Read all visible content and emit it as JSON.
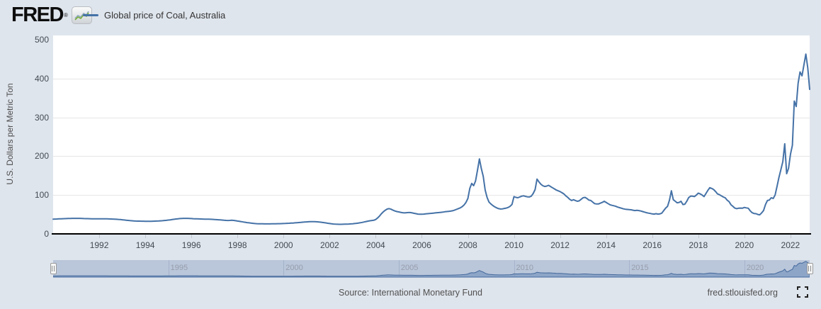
{
  "header": {
    "logo_text": "FRED",
    "registered_mark": "®",
    "legend": {
      "label": "Global price of Coal, Australia",
      "swatch_color": "#4572a7"
    }
  },
  "chart_data": {
    "type": "line",
    "title": "Global price of Coal, Australia",
    "ylabel": "U.S. Dollars per Metric Ton",
    "ylim": [
      0,
      500
    ],
    "y_ticks": [
      0,
      100,
      200,
      300,
      400,
      500
    ],
    "x_tick_years": [
      1992,
      1994,
      1996,
      1998,
      2000,
      2002,
      2004,
      2006,
      2008,
      2010,
      2012,
      2014,
      2016,
      2018,
      2020,
      2022
    ],
    "x_start_year": 1990,
    "frequency": "monthly",
    "grid": "horizontal",
    "legend_position": "top-left",
    "line_color": "#4572a7",
    "series": [
      {
        "name": "Global price of Coal, Australia",
        "units": "U.S. Dollars per Metric Ton",
        "values": [
          38.0,
          38.2,
          38.4,
          38.6,
          38.8,
          39.0,
          39.2,
          39.4,
          39.6,
          39.8,
          39.9,
          40.0,
          40.0,
          40.0,
          39.9,
          39.7,
          39.5,
          39.3,
          39.2,
          39.0,
          38.9,
          38.8,
          38.7,
          38.6,
          38.6,
          38.7,
          38.8,
          38.8,
          38.7,
          38.5,
          38.3,
          38.1,
          37.9,
          37.6,
          37.3,
          37.0,
          36.4,
          35.8,
          35.2,
          34.6,
          34.1,
          33.7,
          33.4,
          33.1,
          32.9,
          32.8,
          32.7,
          32.6,
          32.5,
          32.4,
          32.4,
          32.5,
          32.6,
          32.8,
          33.0,
          33.3,
          33.6,
          34.0,
          34.4,
          34.9,
          35.5,
          36.2,
          36.9,
          37.6,
          38.3,
          38.9,
          39.4,
          39.7,
          39.9,
          40.0,
          39.9,
          39.7,
          39.4,
          39.1,
          38.9,
          38.7,
          38.5,
          38.3,
          38.1,
          37.9,
          37.8,
          37.7,
          37.6,
          37.4,
          37.1,
          36.7,
          36.3,
          35.9,
          35.5,
          35.1,
          34.7,
          34.4,
          34.6,
          35.0,
          34.6,
          33.9,
          33.1,
          32.3,
          31.5,
          30.7,
          29.9,
          29.1,
          28.4,
          27.7,
          27.1,
          26.6,
          26.3,
          26.1,
          26.0,
          25.9,
          25.8,
          25.7,
          25.7,
          25.8,
          25.9,
          26.0,
          26.1,
          26.2,
          26.3,
          26.5,
          26.7,
          26.9,
          27.1,
          27.4,
          27.7,
          28.0,
          28.4,
          28.8,
          29.2,
          29.6,
          30.1,
          30.5,
          30.9,
          31.2,
          31.5,
          31.6,
          31.5,
          31.2,
          30.8,
          30.3,
          29.7,
          29.0,
          28.2,
          27.4,
          26.6,
          25.9,
          25.4,
          25.0,
          24.8,
          24.7,
          24.7,
          24.8,
          25.0,
          25.2,
          25.4,
          25.7,
          26.1,
          26.6,
          27.2,
          27.9,
          28.7,
          29.6,
          30.6,
          31.7,
          32.9,
          33.8,
          34.4,
          35.0,
          37.0,
          41.0,
          46.0,
          52.0,
          57.0,
          61.0,
          64.0,
          65.0,
          63.5,
          61.0,
          59.0,
          57.5,
          56.5,
          55.5,
          54.5,
          54.0,
          54.5,
          55.0,
          55.0,
          54.0,
          53.0,
          52.0,
          51.0,
          50.5,
          50.5,
          51.0,
          51.5,
          52.0,
          52.5,
          53.0,
          53.5,
          54.0,
          54.5,
          55.0,
          55.5,
          56.0,
          57.0,
          57.5,
          58.0,
          58.5,
          59.5,
          61.0,
          63.0,
          65.0,
          67.0,
          70.0,
          74.5,
          81.0,
          91.0,
          117.0,
          130.0,
          124.0,
          136.0,
          164.0,
          193.0,
          168.0,
          148.0,
          113.0,
          94.0,
          82.0,
          77.0,
          73.0,
          69.5,
          67.0,
          65.0,
          64.0,
          64.5,
          65.5,
          66.5,
          68.0,
          71.0,
          76.0,
          96.0,
          94.0,
          93.0,
          95.0,
          97.0,
          98.0,
          96.5,
          95.5,
          95.0,
          97.0,
          104.0,
          114.0,
          141.0,
          134.0,
          128.0,
          124.0,
          122.0,
          123.0,
          125.0,
          122.0,
          119.0,
          116.0,
          113.0,
          111.0,
          109.0,
          106.0,
          103.0,
          98.0,
          94.0,
          89.0,
          86.0,
          88.0,
          86.0,
          84.0,
          85.0,
          89.0,
          93.0,
          94.0,
          91.0,
          87.0,
          86.0,
          82.0,
          78.0,
          77.0,
          77.0,
          79.0,
          81.0,
          84.0,
          81.0,
          78.0,
          75.0,
          73.5,
          72.5,
          71.0,
          69.0,
          67.5,
          66.0,
          64.5,
          63.5,
          63.0,
          62.5,
          62.0,
          61.0,
          60.0,
          60.5,
          60.0,
          59.0,
          57.5,
          56.0,
          54.5,
          53.5,
          52.5,
          51.5,
          51.0,
          52.0,
          51.0,
          51.5,
          53.5,
          60.0,
          66.5,
          71.0,
          87.0,
          111.0,
          88.0,
          84.0,
          80.0,
          81.0,
          84.0,
          75.5,
          76.5,
          84.0,
          93.5,
          97.0,
          97.0,
          96.0,
          100.0,
          105.0,
          103.0,
          100.0,
          96.0,
          104.0,
          112.0,
          119.0,
          117.0,
          114.0,
          109.0,
          103.0,
          101.0,
          98.0,
          95.0,
          93.0,
          87.0,
          83.0,
          75.0,
          71.0,
          66.5,
          65.0,
          66.0,
          66.5,
          66.0,
          68.0,
          67.0,
          66.0,
          59.5,
          54.5,
          52.5,
          52.0,
          50.0,
          49.0,
          54.0,
          60.0,
          76.0,
          86.0,
          87.0,
          93.0,
          91.0,
          100.0,
          122.0,
          145.0,
          165.0,
          186.0,
          232.0,
          155.0,
          169.0,
          205.0,
          228.0,
          342.0,
          328.0,
          388.0,
          417.0,
          407.0,
          435.0,
          463.0,
          428.0,
          372.0
        ]
      }
    ]
  },
  "navigator": {
    "labels": [
      "1995",
      "2000",
      "2005",
      "2010",
      "2015",
      "2020"
    ],
    "label_years": [
      1995,
      2000,
      2005,
      2010,
      2015,
      2020
    ],
    "band_color": "#bac6da",
    "area_color": "rgba(69,114,167,0.38)"
  },
  "footer": {
    "source": "Source: International Monetary Fund",
    "site": "fred.stlouisfed.org"
  }
}
